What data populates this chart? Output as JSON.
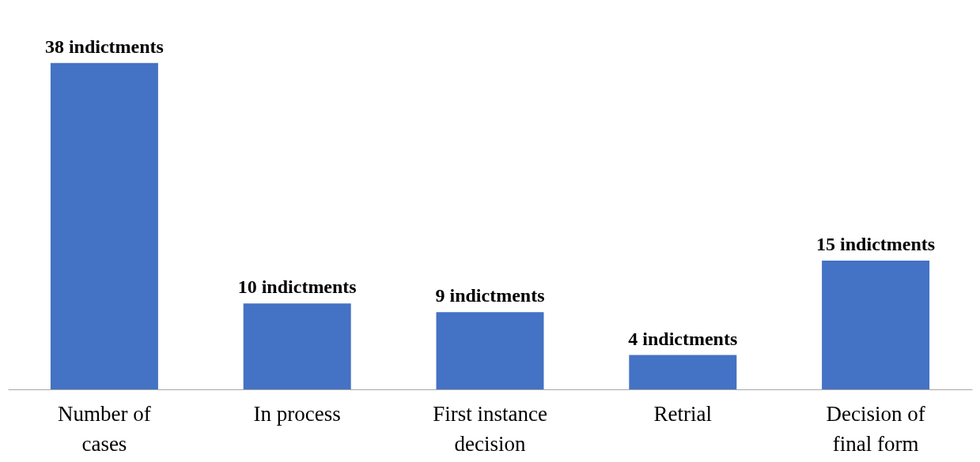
{
  "chart_data": {
    "type": "bar",
    "categories": [
      "Number of cases",
      "In process",
      "First instance decision",
      "Retrial",
      "Decision of final form"
    ],
    "values": [
      38,
      10,
      9,
      4,
      15
    ],
    "value_labels": [
      "38 indictments",
      "10 indictments",
      "9 indictments",
      "4 indictments",
      "15 indictments"
    ],
    "color": "#4472c4"
  }
}
